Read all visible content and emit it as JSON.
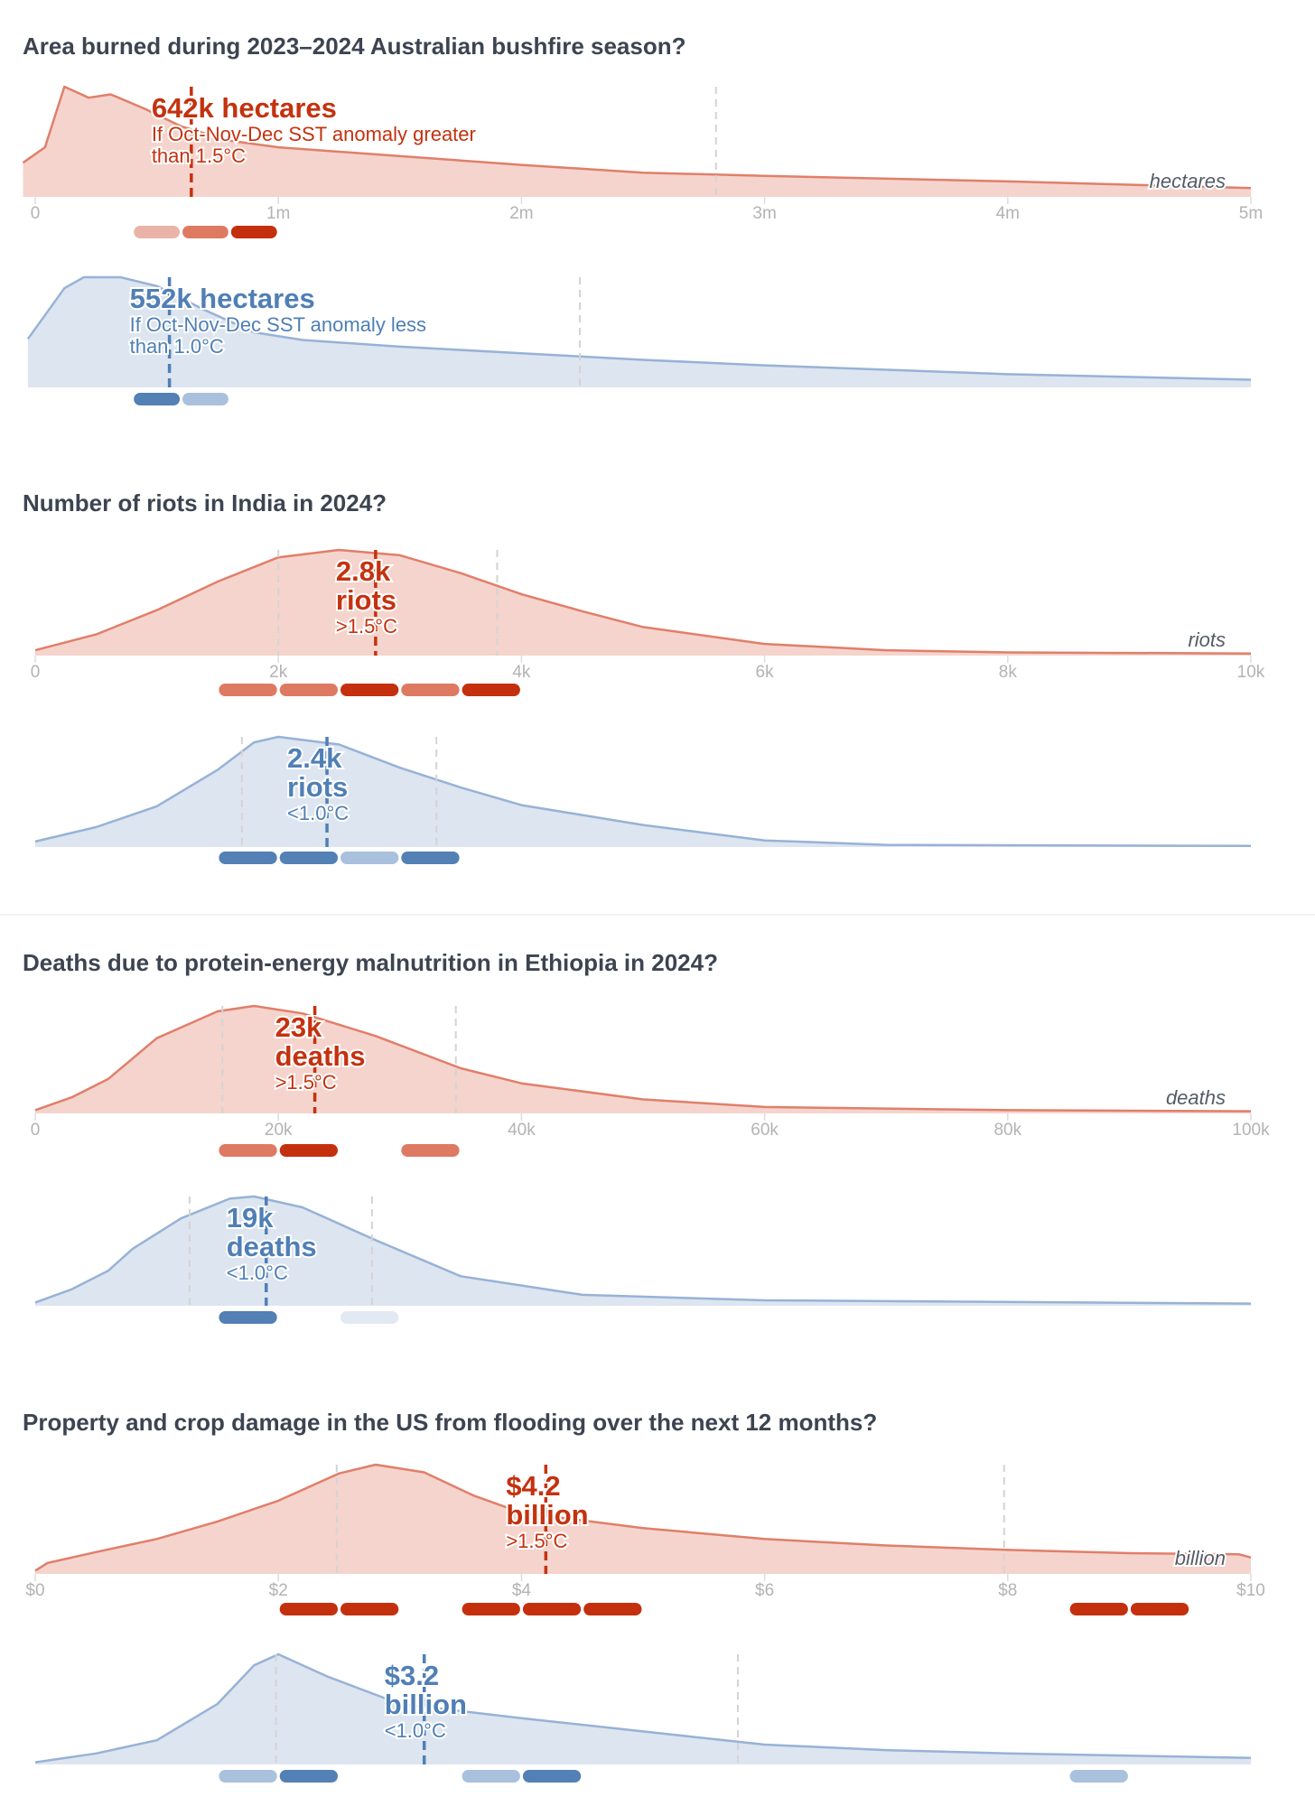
{
  "colors": {
    "red_line": "#e07f6a",
    "red_fill": "#f5d4cd",
    "red_text": "#c4320f",
    "red_median": "#c4320f",
    "blue_line": "#97b2d6",
    "blue_fill": "#dde5f0",
    "blue_text": "#4f7fb5",
    "blue_median": "#4f7fb5",
    "red_pills": [
      "#e9b4a7",
      "#de7a62",
      "#c4300d"
    ],
    "blue_pills": [
      "#e2e9f2",
      "#a9c1dc",
      "#5380b5"
    ],
    "quantile": "#d4d4d4",
    "axis_text": "#b3b3b3"
  },
  "chart_data": [
    {
      "type": "area",
      "title": "Area burned during 2023–2024 Australian bushfire season?",
      "xlim": [
        0,
        5
      ],
      "unit_label": "hectares",
      "ticks": [
        {
          "v": 0,
          "label": "0"
        },
        {
          "v": 1,
          "label": "1m"
        },
        {
          "v": 2,
          "label": "2m"
        },
        {
          "v": 3,
          "label": "3m"
        },
        {
          "v": 4,
          "label": "4m"
        },
        {
          "v": 5,
          "label": "5m"
        }
      ],
      "series": [
        {
          "name": "high",
          "color": "red",
          "median": 0.642,
          "quantiles": [
            2.8
          ],
          "value_lines": [
            "642k hectares"
          ],
          "sub_lines": [
            "If Oct-Nov-Dec SST anomaly greater",
            "than 1.5°C"
          ],
          "density": [
            [
              -0.05,
              0.31
            ],
            [
              0.04,
              0.45
            ],
            [
              0.12,
              1.0
            ],
            [
              0.22,
              0.9
            ],
            [
              0.31,
              0.93
            ],
            [
              0.45,
              0.8
            ],
            [
              0.6,
              0.64
            ],
            [
              0.8,
              0.51
            ],
            [
              1.0,
              0.45
            ],
            [
              1.5,
              0.37
            ],
            [
              2,
              0.29
            ],
            [
              2.5,
              0.22
            ],
            [
              3,
              0.19
            ],
            [
              4,
              0.14
            ],
            [
              5,
              0.08
            ]
          ],
          "bins": [
            [
              0.4,
              0.6,
              1
            ],
            [
              0.6,
              0.8,
              2
            ],
            [
              0.8,
              1.0,
              3
            ]
          ]
        },
        {
          "name": "low",
          "color": "blue",
          "median": 0.552,
          "quantiles": [
            2.24
          ],
          "value_lines": [
            "552k hectares"
          ],
          "sub_lines": [
            "If Oct-Nov-Dec SST anomaly less",
            "than 1.0°C"
          ],
          "density": [
            [
              -0.03,
              0.44
            ],
            [
              0.12,
              0.9
            ],
            [
              0.2,
              1.0
            ],
            [
              0.35,
              1.0
            ],
            [
              0.5,
              0.92
            ],
            [
              0.7,
              0.7
            ],
            [
              0.9,
              0.5
            ],
            [
              1.1,
              0.43
            ],
            [
              1.5,
              0.37
            ],
            [
              2,
              0.31
            ],
            [
              2.5,
              0.25
            ],
            [
              3,
              0.2
            ],
            [
              4,
              0.12
            ],
            [
              5,
              0.07
            ]
          ],
          "bins": [
            [
              0.4,
              0.6,
              3
            ],
            [
              0.6,
              0.8,
              2
            ]
          ]
        }
      ]
    },
    {
      "type": "area",
      "title": "Number of riots in India in 2024?",
      "xlim": [
        0,
        10
      ],
      "unit_label": "riots",
      "ticks": [
        {
          "v": 0,
          "label": "0"
        },
        {
          "v": 2,
          "label": "2k"
        },
        {
          "v": 4,
          "label": "4k"
        },
        {
          "v": 6,
          "label": "6k"
        },
        {
          "v": 8,
          "label": "8k"
        },
        {
          "v": 10,
          "label": "10k"
        }
      ],
      "series": [
        {
          "name": "high",
          "color": "red",
          "median": 2.8,
          "quantiles": [
            2.0,
            3.8
          ],
          "value_lines": [
            "2.8k",
            "riots"
          ],
          "sub_lines": [
            ">1.5°C"
          ],
          "density": [
            [
              0,
              0.05
            ],
            [
              0.5,
              0.2
            ],
            [
              1,
              0.43
            ],
            [
              1.5,
              0.7
            ],
            [
              2,
              0.93
            ],
            [
              2.5,
              1.0
            ],
            [
              3,
              0.95
            ],
            [
              3.5,
              0.78
            ],
            [
              4,
              0.58
            ],
            [
              4.5,
              0.42
            ],
            [
              5,
              0.27
            ],
            [
              6,
              0.11
            ],
            [
              7,
              0.05
            ],
            [
              8,
              0.03
            ],
            [
              10,
              0.02
            ]
          ],
          "bins": [
            [
              1.5,
              2,
              2
            ],
            [
              2,
              2.5,
              2
            ],
            [
              2.5,
              3,
              3
            ],
            [
              3,
              3.5,
              2
            ],
            [
              3.5,
              4,
              3
            ]
          ]
        },
        {
          "name": "low",
          "color": "blue",
          "median": 2.4,
          "quantiles": [
            1.7,
            3.3
          ],
          "value_lines": [
            "2.4k",
            "riots"
          ],
          "sub_lines": [
            "<1.0°C"
          ],
          "density": [
            [
              0,
              0.05
            ],
            [
              0.5,
              0.18
            ],
            [
              1,
              0.37
            ],
            [
              1.5,
              0.7
            ],
            [
              1.8,
              0.95
            ],
            [
              2,
              1.0
            ],
            [
              2.5,
              0.93
            ],
            [
              3,
              0.72
            ],
            [
              3.5,
              0.54
            ],
            [
              4,
              0.38
            ],
            [
              5,
              0.2
            ],
            [
              6,
              0.06
            ],
            [
              7,
              0.02
            ],
            [
              10,
              0.01
            ]
          ],
          "bins": [
            [
              1.5,
              2,
              3
            ],
            [
              2,
              2.5,
              3
            ],
            [
              2.5,
              3,
              2
            ],
            [
              3,
              3.5,
              3
            ]
          ]
        }
      ]
    },
    {
      "type": "area",
      "title": "Deaths due to protein-energy malnutrition in Ethiopia in 2024?",
      "xlim": [
        0,
        100
      ],
      "unit_label": "deaths",
      "ticks": [
        {
          "v": 0,
          "label": "0"
        },
        {
          "v": 20,
          "label": "20k"
        },
        {
          "v": 40,
          "label": "40k"
        },
        {
          "v": 60,
          "label": "60k"
        },
        {
          "v": 80,
          "label": "80k"
        },
        {
          "v": 100,
          "label": "100k"
        }
      ],
      "series": [
        {
          "name": "high",
          "color": "red",
          "median": 23,
          "quantiles": [
            15.4,
            34.6
          ],
          "value_lines": [
            "23k",
            "deaths"
          ],
          "sub_lines": [
            ">1.5°C"
          ],
          "density": [
            [
              0,
              0.03
            ],
            [
              3,
              0.15
            ],
            [
              6,
              0.32
            ],
            [
              10,
              0.7
            ],
            [
              15,
              0.95
            ],
            [
              18,
              1.0
            ],
            [
              22,
              0.93
            ],
            [
              28,
              0.72
            ],
            [
              35,
              0.42
            ],
            [
              40,
              0.28
            ],
            [
              50,
              0.13
            ],
            [
              60,
              0.06
            ],
            [
              80,
              0.03
            ],
            [
              100,
              0.02
            ]
          ],
          "bins": [
            [
              15,
              20,
              2
            ],
            [
              20,
              25,
              3
            ],
            [
              30,
              35,
              2
            ]
          ]
        },
        {
          "name": "low",
          "color": "blue",
          "median": 19,
          "quantiles": [
            12.7,
            27.7
          ],
          "value_lines": [
            "19k",
            "deaths"
          ],
          "sub_lines": [
            "<1.0°C"
          ],
          "density": [
            [
              0,
              0.03
            ],
            [
              3,
              0.15
            ],
            [
              6,
              0.32
            ],
            [
              8,
              0.52
            ],
            [
              12,
              0.8
            ],
            [
              16,
              0.98
            ],
            [
              18,
              1.0
            ],
            [
              22,
              0.9
            ],
            [
              28,
              0.6
            ],
            [
              35,
              0.27
            ],
            [
              45,
              0.1
            ],
            [
              60,
              0.05
            ],
            [
              100,
              0.02
            ]
          ],
          "bins": [
            [
              15,
              20,
              3
            ],
            [
              25,
              30,
              1
            ]
          ]
        }
      ]
    },
    {
      "type": "area",
      "title": "Property and crop damage in the US from flooding over the next 12 months?",
      "xlim": [
        0,
        10
      ],
      "unit_label": "billion",
      "ticks": [
        {
          "v": 0,
          "label": "$0"
        },
        {
          "v": 2,
          "label": "$2"
        },
        {
          "v": 4,
          "label": "$4"
        },
        {
          "v": 6,
          "label": "$6"
        },
        {
          "v": 8,
          "label": "$8"
        },
        {
          "v": 10,
          "label": "$10"
        }
      ],
      "series": [
        {
          "name": "high",
          "color": "red",
          "median": 4.2,
          "quantiles": [
            2.48,
            7.97
          ],
          "value_lines": [
            "$4.2",
            "billion"
          ],
          "sub_lines": [
            ">1.5°C"
          ],
          "density": [
            [
              0,
              0.03
            ],
            [
              0.1,
              0.1
            ],
            [
              0.5,
              0.2
            ],
            [
              1,
              0.32
            ],
            [
              1.5,
              0.48
            ],
            [
              2,
              0.67
            ],
            [
              2.5,
              0.92
            ],
            [
              2.8,
              1.0
            ],
            [
              3.2,
              0.93
            ],
            [
              3.6,
              0.72
            ],
            [
              4,
              0.56
            ],
            [
              5,
              0.42
            ],
            [
              6,
              0.32
            ],
            [
              7,
              0.26
            ],
            [
              8,
              0.22
            ],
            [
              9,
              0.19
            ],
            [
              9.9,
              0.18
            ],
            [
              10,
              0.15
            ]
          ],
          "bins": [
            [
              2,
              2.5,
              3
            ],
            [
              2.5,
              3,
              3
            ],
            [
              3.5,
              4,
              3
            ],
            [
              4,
              4.5,
              3
            ],
            [
              4.5,
              5,
              3
            ],
            [
              8.5,
              9,
              3
            ],
            [
              9,
              9.5,
              3
            ]
          ]
        },
        {
          "name": "low",
          "color": "blue",
          "median": 3.2,
          "quantiles": [
            1.98,
            5.78
          ],
          "value_lines": [
            "$3.2",
            "billion"
          ],
          "sub_lines": [
            "<1.0°C"
          ],
          "density": [
            [
              0,
              0.02
            ],
            [
              0.5,
              0.1
            ],
            [
              1,
              0.22
            ],
            [
              1.5,
              0.55
            ],
            [
              1.8,
              0.9
            ],
            [
              2,
              1.0
            ],
            [
              2.4,
              0.8
            ],
            [
              3,
              0.55
            ],
            [
              4,
              0.42
            ],
            [
              5,
              0.3
            ],
            [
              6,
              0.18
            ],
            [
              7,
              0.13
            ],
            [
              8,
              0.1
            ],
            [
              9,
              0.08
            ],
            [
              10,
              0.06
            ]
          ],
          "bins": [
            [
              1.5,
              2,
              2
            ],
            [
              2,
              2.5,
              3
            ],
            [
              3.5,
              4,
              2
            ],
            [
              4,
              4.5,
              3
            ],
            [
              8.5,
              9,
              2
            ]
          ]
        }
      ]
    }
  ]
}
